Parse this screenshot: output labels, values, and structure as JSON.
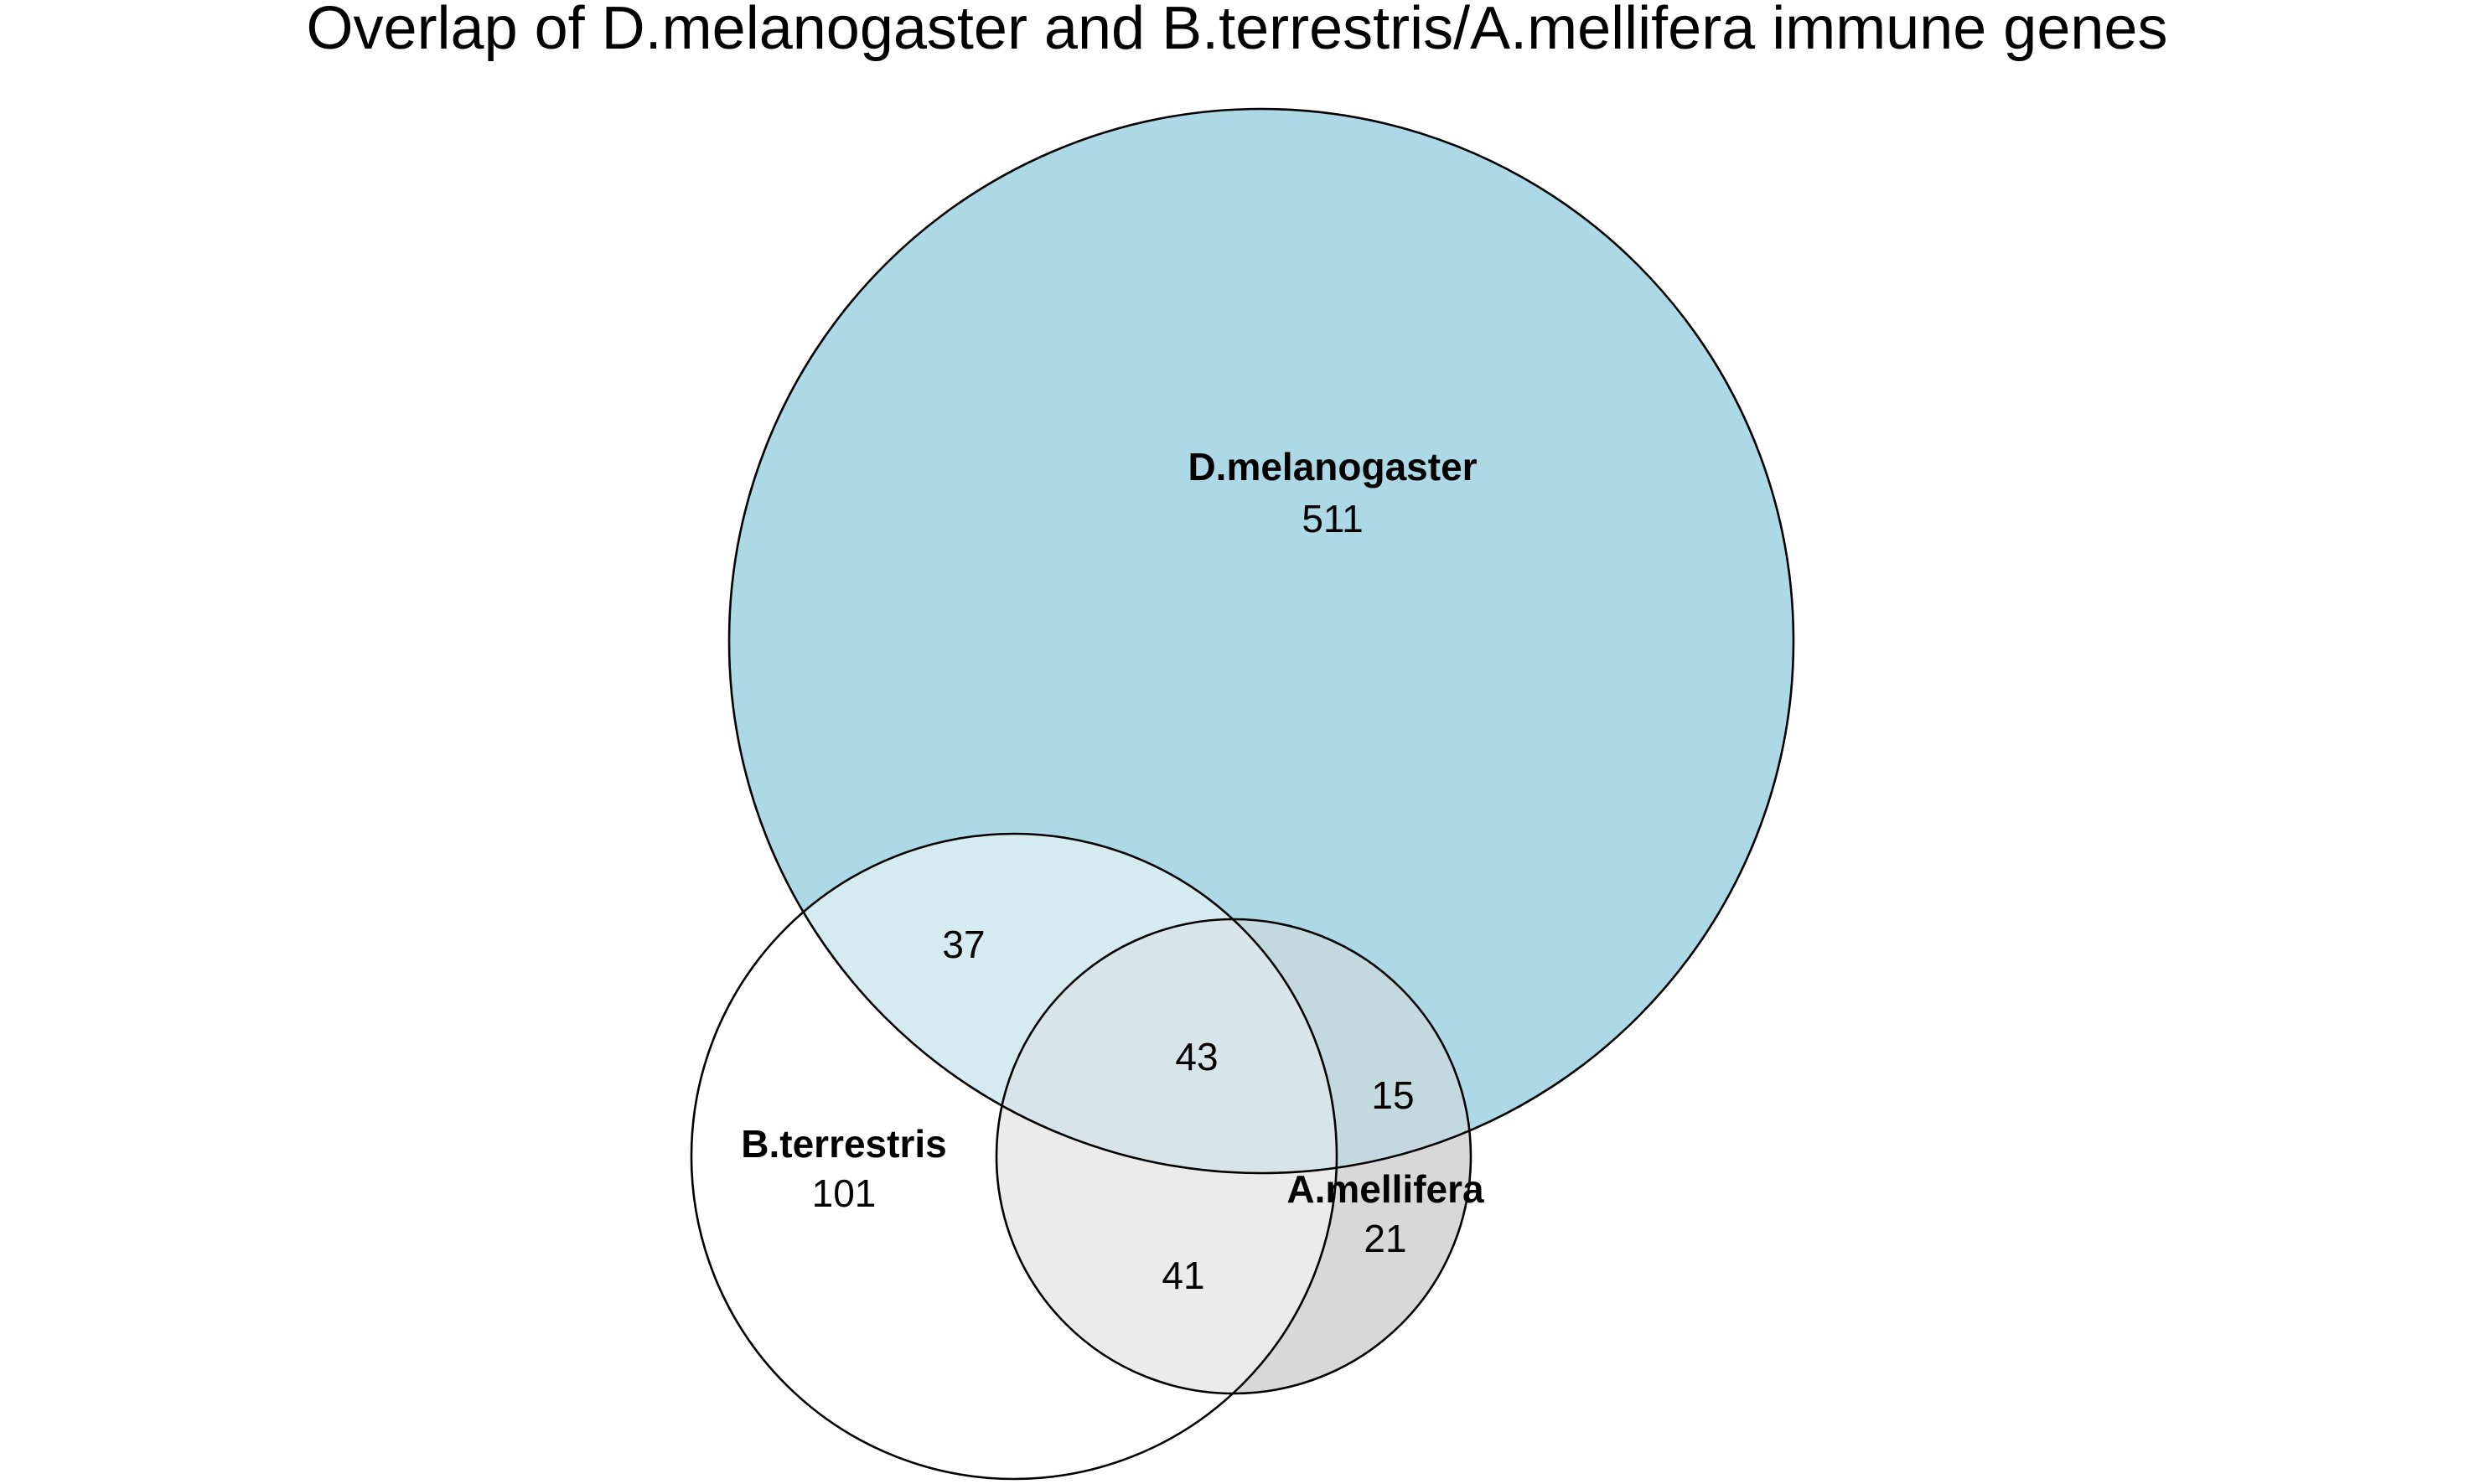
{
  "title": "Overlap of D.melanogaster and B.terrestris/A.mellifera immune genes",
  "colors": {
    "dmel_only": "#add8e6",
    "dmel_bter": "#d6eaf1",
    "dmel_bter_amel": "#d7e4ea",
    "dmel_amel": "#c3d8df",
    "bter_amel": "#ebebeb",
    "amel_only": "#d8d8d8",
    "bter_only": "#ffffff",
    "outline": "#000000"
  },
  "sets": {
    "dmel": {
      "label": "D.melanogaster",
      "count": "511"
    },
    "bter": {
      "label": "B.terrestris",
      "count": "101"
    },
    "amel": {
      "label": "A.mellifera",
      "count": "21"
    }
  },
  "intersections": {
    "dmel_bter": "37",
    "dmel_bter_amel": "43",
    "dmel_amel": "15",
    "bter_amel": "41"
  }
}
